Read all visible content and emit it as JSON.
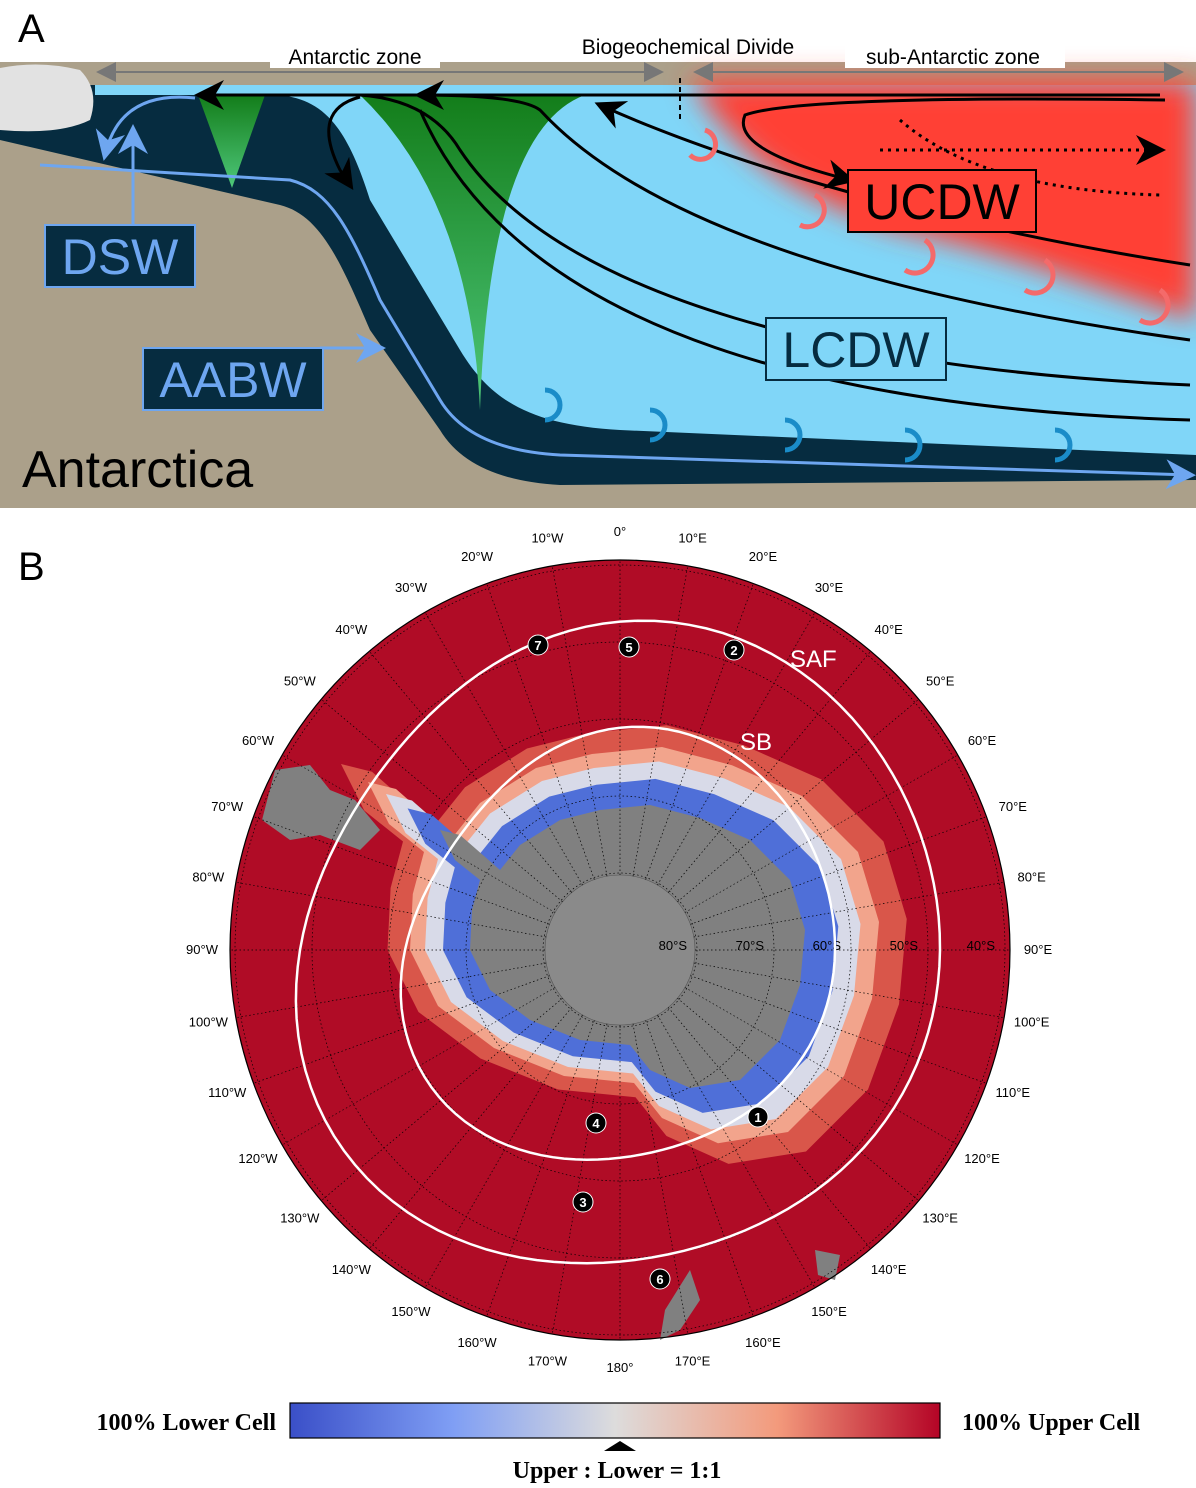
{
  "panel_a": {
    "label": "A",
    "zones": [
      "Antarctic zone",
      "Biogeochemical Divide",
      "sub-Antarctic zone"
    ],
    "water_masses": [
      "UCDW",
      "LCDW",
      "DSW",
      "AABW"
    ],
    "land": "Antarctica"
  },
  "panel_b": {
    "label": "B",
    "longitude_labels": [
      "0°",
      "10°E",
      "20°E",
      "30°E",
      "40°E",
      "50°E",
      "60°E",
      "70°E",
      "80°E",
      "90°E",
      "100°E",
      "110°E",
      "120°E",
      "130°E",
      "140°E",
      "150°E",
      "160°E",
      "170°E",
      "180°",
      "170°W",
      "160°W",
      "150°W",
      "140°W",
      "130°W",
      "120°W",
      "110°W",
      "100°W",
      "90°W",
      "80°W",
      "70°W",
      "60°W",
      "50°W",
      "40°W",
      "30°W",
      "20°W",
      "10°W"
    ],
    "latitude_labels": [
      "80°S",
      "70°S",
      "60°S",
      "50°S",
      "40°S"
    ],
    "fronts": [
      "SAF",
      "SB"
    ],
    "markers": [
      "1",
      "2",
      "3",
      "4",
      "5",
      "6",
      "7"
    ],
    "colorbar": {
      "left": "100% Lower Cell",
      "right": "100% Upper Cell",
      "center": "Upper : Lower = 1:1"
    }
  }
}
